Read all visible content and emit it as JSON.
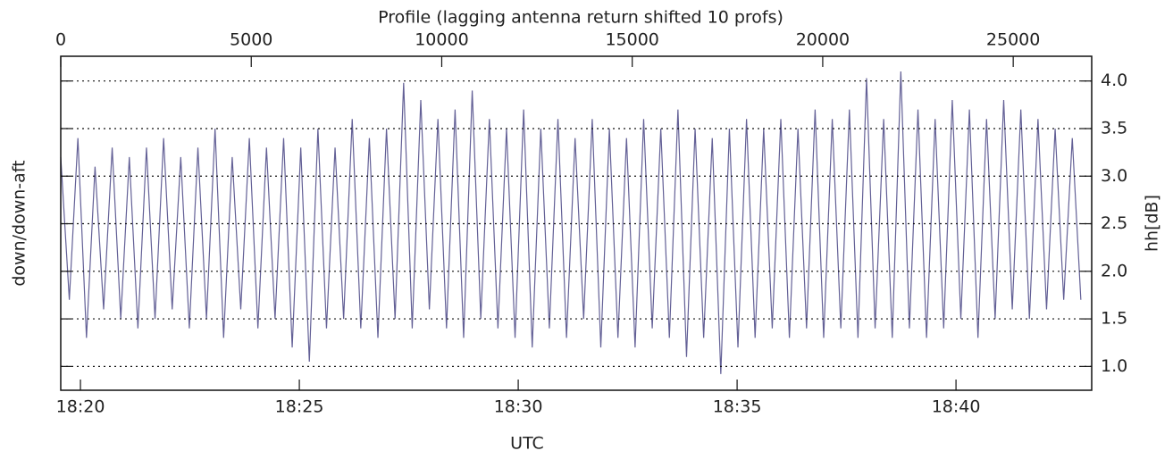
{
  "chart_data": {
    "type": "line",
    "title": "Profile (lagging antenna return shifted 10 profs)",
    "x_label": "UTC",
    "y_label": "down/down-aft",
    "y2_label": "hh[dB]",
    "x": [
      0,
      225,
      450,
      675,
      900,
      1125,
      1350,
      1575,
      1800,
      2025,
      2250,
      2475,
      2700,
      2925,
      3150,
      3375,
      3600,
      3825,
      4050,
      4275,
      4500,
      4725,
      4950,
      5175,
      5400,
      5625,
      5850,
      6075,
      6300,
      6525,
      6750,
      6975,
      7200,
      7425,
      7650,
      7875,
      8100,
      8325,
      8550,
      8775,
      9000,
      9225,
      9450,
      9675,
      9900,
      10125,
      10350,
      10575,
      10800,
      11025,
      11250,
      11475,
      11700,
      11925,
      12150,
      12375,
      12600,
      12825,
      13050,
      13275,
      13500,
      13725,
      13950,
      14175,
      14400,
      14625,
      14850,
      15075,
      15300,
      15525,
      15750,
      15975,
      16200,
      16425,
      16650,
      16875,
      17100,
      17325,
      17550,
      17775,
      18000,
      18225,
      18450,
      18675,
      18900,
      19125,
      19350,
      19575,
      19800,
      20025,
      20250,
      20475,
      20700,
      20925,
      21150,
      21375,
      21600,
      21825,
      22050,
      22275,
      22500,
      22725,
      22950,
      23175,
      23400,
      23625,
      23850,
      24075,
      24300,
      24525,
      24750,
      24975,
      25200,
      25425,
      25650,
      25875,
      26100,
      26325,
      26550,
      26775
    ],
    "series": [
      {
        "color": "#636096",
        "axis": "y2",
        "values": [
          3.2,
          1.7,
          3.4,
          1.3,
          3.1,
          1.6,
          3.3,
          1.5,
          3.2,
          1.4,
          3.3,
          1.5,
          3.4,
          1.6,
          3.2,
          1.4,
          3.3,
          1.5,
          3.5,
          1.3,
          3.2,
          1.6,
          3.4,
          1.4,
          3.3,
          1.5,
          3.4,
          1.2,
          3.3,
          1.05,
          3.5,
          1.4,
          3.3,
          1.5,
          3.6,
          1.4,
          3.4,
          1.3,
          3.5,
          1.5,
          3.98,
          1.4,
          3.8,
          1.6,
          3.6,
          1.4,
          3.7,
          1.3,
          3.9,
          1.5,
          3.6,
          1.4,
          3.5,
          1.3,
          3.7,
          1.2,
          3.5,
          1.4,
          3.6,
          1.3,
          3.4,
          1.5,
          3.6,
          1.2,
          3.5,
          1.3,
          3.4,
          1.2,
          3.6,
          1.4,
          3.5,
          1.3,
          3.7,
          1.1,
          3.5,
          1.3,
          3.4,
          0.92,
          3.5,
          1.2,
          3.6,
          1.3,
          3.5,
          1.4,
          3.6,
          1.3,
          3.5,
          1.4,
          3.7,
          1.3,
          3.6,
          1.4,
          3.7,
          1.3,
          4.03,
          1.4,
          3.6,
          1.3,
          4.1,
          1.4,
          3.7,
          1.3,
          3.6,
          1.4,
          3.8,
          1.5,
          3.7,
          1.3,
          3.6,
          1.5,
          3.8,
          1.6,
          3.7,
          1.5,
          3.6,
          1.6,
          3.5,
          1.7,
          3.4,
          1.7
        ]
      }
    ],
    "xlim": [
      0,
      27060
    ],
    "xticks": [
      0,
      5000,
      10000,
      15000,
      20000,
      25000
    ],
    "x2lim": [
      -0.45,
      23.1
    ],
    "x2ticks": [
      {
        "value": 0,
        "label": "18:20"
      },
      {
        "value": 5,
        "label": "18:25"
      },
      {
        "value": 10,
        "label": "18:30"
      },
      {
        "value": 15,
        "label": "18:35"
      },
      {
        "value": 20,
        "label": "18:40"
      }
    ],
    "y2lim": [
      0.75,
      4.26
    ],
    "y2ticks": [
      {
        "value": 1,
        "label": "1.0"
      },
      {
        "value": 1.5,
        "label": "1.5"
      },
      {
        "value": 2,
        "label": "2.0"
      },
      {
        "value": 2.5,
        "label": "2.5"
      },
      {
        "value": 3,
        "label": "3.0"
      },
      {
        "value": 3.5,
        "label": "3.5"
      },
      {
        "value": 4,
        "label": "4.0"
      }
    ],
    "grid": true
  }
}
